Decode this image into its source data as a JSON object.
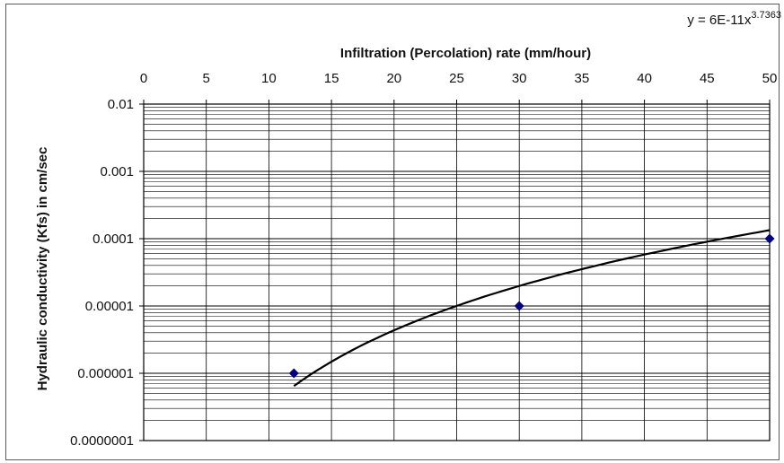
{
  "chart_data": {
    "type": "scatter",
    "title": "",
    "xlabel": "Infiltration (Percolation) rate (mm/hour)",
    "ylabel": "Hydraulic conductivity (Kfs) in cm/sec",
    "xlim": [
      0,
      50
    ],
    "ylim": [
      1e-07,
      0.01
    ],
    "x_axis_position": "top",
    "y_scale": "log",
    "grid": true,
    "x_ticks": [
      "0",
      "5",
      "10",
      "15",
      "20",
      "25",
      "30",
      "35",
      "40",
      "45",
      "50"
    ],
    "y_ticks": [
      "0.0000001",
      "0.000001",
      "0.00001",
      "0.0001",
      "0.001",
      "0.01"
    ],
    "series": [
      {
        "marker": "diamond",
        "color": "#000080",
        "x": [
          12,
          30,
          50
        ],
        "y": [
          1e-06,
          1e-05,
          0.0001
        ]
      }
    ],
    "trendline": {
      "type": "power",
      "coefficient": 6e-11,
      "exponent": 3.7363,
      "x_range": [
        12,
        50
      ],
      "color": "#000000",
      "equation_base": "y = 6E-11x",
      "equation_exponent": "3.7363"
    }
  }
}
